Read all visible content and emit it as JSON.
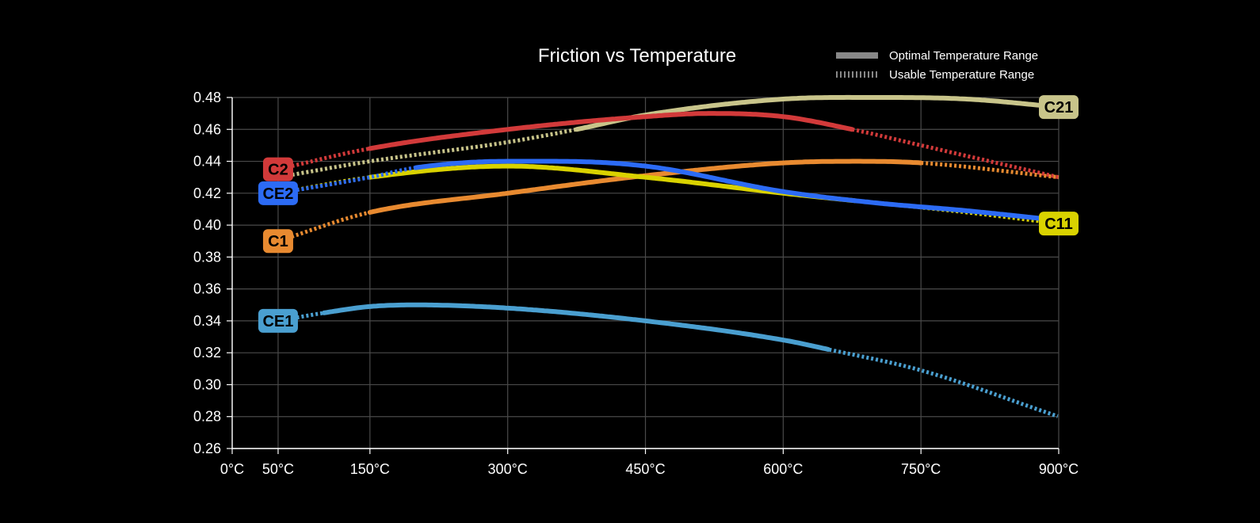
{
  "chart_data": {
    "type": "line",
    "title": "Friction vs Temperature",
    "xlabel": "",
    "ylabel": "",
    "xlim": [
      0,
      900
    ],
    "ylim": [
      0.26,
      0.48
    ],
    "grid": true,
    "x_ticks": [
      0,
      50,
      150,
      300,
      450,
      600,
      750,
      900
    ],
    "x_tick_labels": [
      "0°C",
      "50°C",
      "150°C",
      "300°C",
      "450°C",
      "600°C",
      "750°C",
      "900°C"
    ],
    "y_ticks": [
      0.26,
      0.28,
      0.3,
      0.32,
      0.34,
      0.36,
      0.38,
      0.4,
      0.42,
      0.44,
      0.46,
      0.48
    ],
    "y_tick_labels": [
      "0.26",
      "0.28",
      "0.30",
      "0.32",
      "0.34",
      "0.36",
      "0.38",
      "0.40",
      "0.42",
      "0.44",
      "0.46",
      "0.48"
    ],
    "legend": {
      "placement": "top-right",
      "items": [
        {
          "style": "solid",
          "label": "Optimal Temperature Range"
        },
        {
          "style": "dotted",
          "label": "Usable Temperature Range"
        }
      ]
    },
    "series": [
      {
        "name": "C21",
        "color": "#c8c48a",
        "label_side": "right",
        "x": [
          50,
          150,
          300,
          375,
          450,
          600,
          700,
          800,
          900
        ],
        "y": [
          0.43,
          0.44,
          0.452,
          0.46,
          0.469,
          0.479,
          0.48,
          0.479,
          0.474
        ],
        "optimal_range": [
          375,
          900
        ]
      },
      {
        "name": "C2",
        "color": "#d23a3a",
        "label_side": "left",
        "x": [
          50,
          150,
          300,
          450,
          520,
          600,
          675,
          750,
          900
        ],
        "y": [
          0.435,
          0.448,
          0.46,
          0.468,
          0.47,
          0.468,
          0.46,
          0.45,
          0.43
        ],
        "optimal_range": [
          150,
          675
        ]
      },
      {
        "name": "C1",
        "color": "#e88a30",
        "label_side": "left",
        "x": [
          50,
          150,
          300,
          450,
          600,
          680,
          750,
          900
        ],
        "y": [
          0.39,
          0.408,
          0.42,
          0.431,
          0.439,
          0.44,
          0.439,
          0.43
        ],
        "optimal_range": [
          150,
          750
        ]
      },
      {
        "name": "C11",
        "color": "#d9d200",
        "label_side": "right",
        "x": [
          50,
          150,
          300,
          450,
          600,
          700,
          800,
          900
        ],
        "y": [
          0.42,
          0.43,
          0.437,
          0.43,
          0.42,
          0.414,
          0.408,
          0.401
        ],
        "optimal_range": [
          150,
          680
        ]
      },
      {
        "name": "CE2",
        "color": "#2c6bf5",
        "label_side": "left",
        "x": [
          50,
          150,
          200,
          300,
          350,
          450,
          600,
          700,
          800,
          900
        ],
        "y": [
          0.42,
          0.43,
          0.436,
          0.44,
          0.44,
          0.437,
          0.421,
          0.414,
          0.409,
          0.403
        ],
        "optimal_range": [
          200,
          900
        ]
      },
      {
        "name": "CE1",
        "color": "#4a9fd0",
        "label_side": "left",
        "x": [
          50,
          100,
          150,
          200,
          300,
          450,
          600,
          650,
          750,
          900
        ],
        "y": [
          0.34,
          0.345,
          0.349,
          0.35,
          0.348,
          0.34,
          0.328,
          0.322,
          0.309,
          0.28
        ],
        "optimal_range": [
          100,
          650
        ]
      }
    ]
  }
}
